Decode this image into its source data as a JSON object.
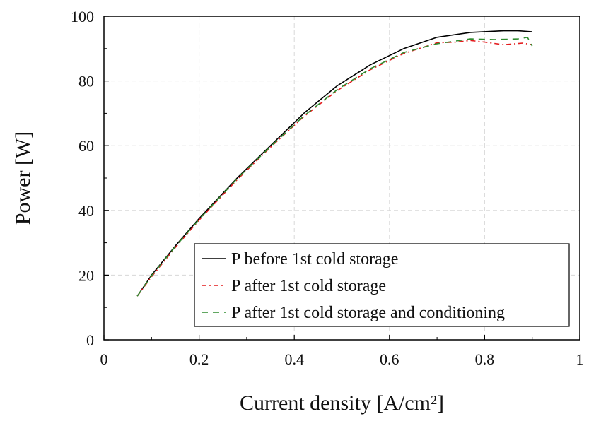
{
  "chart_data": {
    "type": "line",
    "xlabel": "Current density  [A/cm²]",
    "ylabel": "Power [W]",
    "xlim": [
      0,
      1
    ],
    "ylim": [
      0,
      100
    ],
    "x_ticks": [
      0,
      0.2,
      0.4,
      0.6,
      0.8,
      1
    ],
    "x_tick_labels": [
      "0",
      "0.2",
      "0.4",
      "0.6",
      "0.8",
      "1"
    ],
    "y_ticks": [
      0,
      20,
      40,
      60,
      80,
      100
    ],
    "y_tick_labels": [
      "0",
      "20",
      "40",
      "60",
      "80",
      "100"
    ],
    "grid": true,
    "legend_position": "bottom-right",
    "series": [
      {
        "name": "P before 1st cold storage",
        "color": "#000000",
        "style": "solid",
        "x": [
          0.07,
          0.1,
          0.15,
          0.2,
          0.28,
          0.35,
          0.42,
          0.49,
          0.56,
          0.63,
          0.7,
          0.77,
          0.84,
          0.87,
          0.9
        ],
        "y": [
          13.5,
          20,
          29,
          37.5,
          50,
          60,
          70,
          78.5,
          85,
          90,
          93.5,
          95,
          95.5,
          95.5,
          95.2
        ]
      },
      {
        "name": "P after 1st cold storage",
        "color": "#e31a1c",
        "style": "dashdot",
        "x": [
          0.07,
          0.1,
          0.15,
          0.2,
          0.28,
          0.35,
          0.42,
          0.49,
          0.56,
          0.63,
          0.7,
          0.74,
          0.77,
          0.8,
          0.84,
          0.88,
          0.9
        ],
        "y": [
          13.5,
          19.5,
          28.5,
          37,
          49.5,
          59.5,
          69,
          77,
          83.5,
          88.5,
          91.8,
          92,
          92.5,
          92,
          91.2,
          91.7,
          91.2
        ]
      },
      {
        "name": "P after 1st cold storage and conditioning",
        "color": "#2e8b2e",
        "style": "dashed",
        "x": [
          0.07,
          0.1,
          0.15,
          0.2,
          0.28,
          0.35,
          0.42,
          0.49,
          0.56,
          0.63,
          0.7,
          0.77,
          0.82,
          0.87,
          0.89,
          0.9
        ],
        "y": [
          13.5,
          19.8,
          28.8,
          37.2,
          49.8,
          59.7,
          69.2,
          77.3,
          83.8,
          88.8,
          91.5,
          93,
          92.8,
          93,
          93.5,
          90.8
        ]
      }
    ]
  }
}
